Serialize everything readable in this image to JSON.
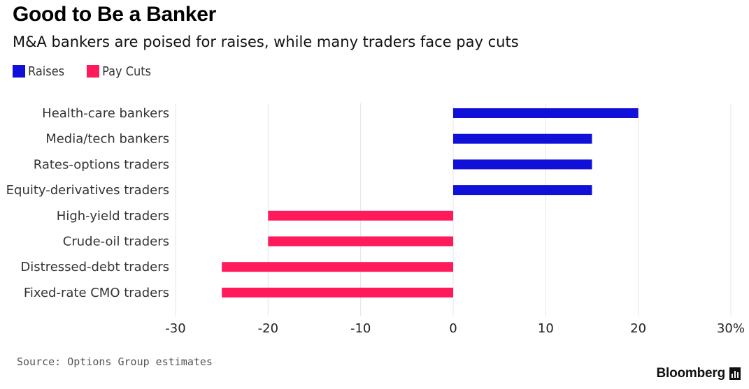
{
  "header": {
    "title": "Good to Be a Banker",
    "subtitle": "M&A bankers are poised for raises, while many traders face pay cuts"
  },
  "legend": [
    {
      "label": "Raises",
      "color": "#1010d8"
    },
    {
      "label": "Pay Cuts",
      "color": "#ff1a5c"
    }
  ],
  "footer": {
    "source": "Source: Options Group estimates",
    "brand": "Bloomberg",
    "brand_icon": "bar-chart-icon"
  },
  "chart_data": {
    "type": "bar",
    "orientation": "horizontal",
    "categories": [
      "Health-care bankers",
      "Media/tech bankers",
      "Rates-options traders",
      "Equity-derivatives traders",
      "High-yield traders",
      "Crude-oil traders",
      "Distressed-debt traders",
      "Fixed-rate CMO traders"
    ],
    "series": [
      {
        "name": "Raises",
        "color": "#1010d8",
        "values": [
          20,
          15,
          15,
          15,
          null,
          null,
          null,
          null
        ]
      },
      {
        "name": "Pay Cuts",
        "color": "#ff1a5c",
        "values": [
          null,
          null,
          null,
          null,
          -20,
          -20,
          -25,
          -25
        ]
      }
    ],
    "xlim": [
      -30,
      30
    ],
    "xticks": [
      -30,
      -20,
      -10,
      0,
      10,
      20,
      30
    ],
    "xtick_labels": [
      "-30",
      "-20",
      "-10",
      "0",
      "10",
      "20",
      "30%"
    ],
    "grid": "vertical",
    "gridline_color": "#e4e4e4",
    "legend_position": "top-left"
  }
}
